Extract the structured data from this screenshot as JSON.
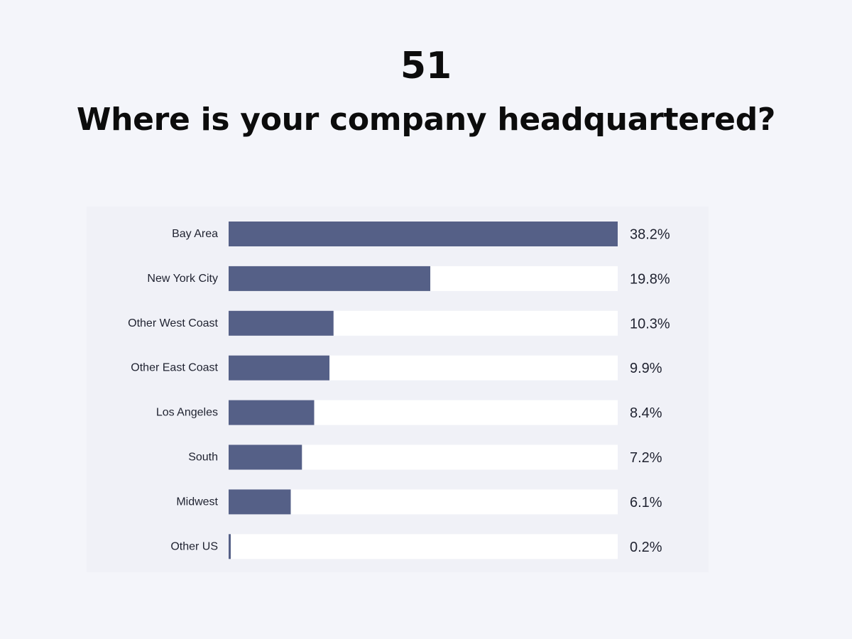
{
  "header": {
    "number": "51",
    "question": "Where is your company headquartered?"
  },
  "colors": {
    "background": "#f4f5fa",
    "panel": "#f0f1f7",
    "bar": "#556087",
    "track": "#ffffff",
    "text": "#0c0c0c"
  },
  "chart_data": {
    "type": "bar",
    "orientation": "horizontal",
    "categories": [
      "Bay Area",
      "New York City",
      "Other West Coast",
      "Other East Coast",
      "Los Angeles",
      "South",
      "Midwest",
      "Other US"
    ],
    "values": [
      38.2,
      19.8,
      10.3,
      9.9,
      8.4,
      7.2,
      6.1,
      0.2
    ],
    "value_labels": [
      "38.2%",
      "19.8%",
      "10.3%",
      "9.9%",
      "8.4%",
      "7.2%",
      "6.1%",
      "0.2%"
    ],
    "xlim": [
      0,
      38.2
    ],
    "grid": false
  }
}
